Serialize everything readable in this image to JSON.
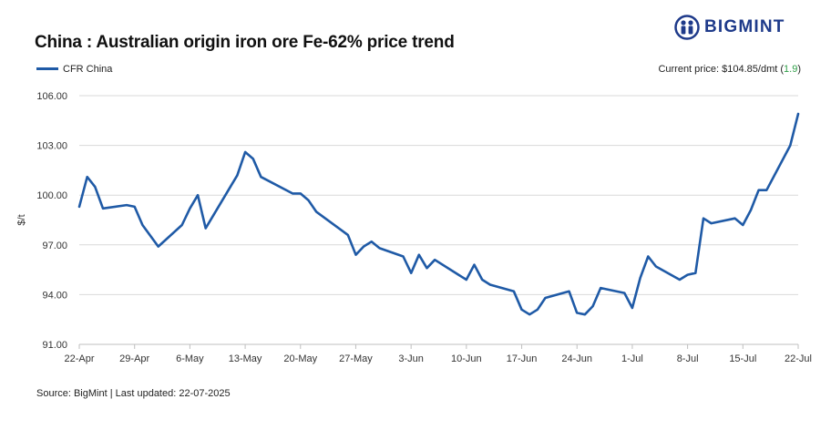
{
  "title": "China : Australian origin iron ore Fe-62% price trend",
  "brand": {
    "name": "BIGMINT",
    "color": "#1e3a8a"
  },
  "legend": {
    "label": "CFR China",
    "color": "#1f5aa6"
  },
  "current_price": {
    "label": "Current price: $104.85/dmt",
    "change_open": " (",
    "change": "1.9",
    "change_close": ")",
    "change_color": "#2e9e47"
  },
  "footer": "Source: BigMint | Last updated: 22-07-2025",
  "chart_data": {
    "type": "line",
    "ylabel": "$/t",
    "ylim": [
      91,
      106
    ],
    "yticks": [
      "91.00",
      "94.00",
      "97.00",
      "100.00",
      "103.00",
      "106.00"
    ],
    "xticks": [
      "22-Apr",
      "29-Apr",
      "6-May",
      "13-May",
      "20-May",
      "27-May",
      "3-Jun",
      "10-Jun",
      "17-Jun",
      "24-Jun",
      "1-Jul",
      "8-Jul",
      "15-Jul",
      "22-Jul"
    ],
    "grid": "horizontal",
    "legend_position": "top-left",
    "series": [
      {
        "name": "CFR China",
        "color": "#1f5aa6",
        "x": [
          "2025-04-22",
          "2025-04-23",
          "2025-04-24",
          "2025-04-25",
          "2025-04-28",
          "2025-04-29",
          "2025-04-30",
          "2025-05-02",
          "2025-05-05",
          "2025-05-06",
          "2025-05-07",
          "2025-05-08",
          "2025-05-12",
          "2025-05-13",
          "2025-05-14",
          "2025-05-15",
          "2025-05-19",
          "2025-05-20",
          "2025-05-21",
          "2025-05-22",
          "2025-05-26",
          "2025-05-27",
          "2025-05-28",
          "2025-05-29",
          "2025-05-30",
          "2025-06-02",
          "2025-06-03",
          "2025-06-04",
          "2025-06-05",
          "2025-06-06",
          "2025-06-09",
          "2025-06-10",
          "2025-06-11",
          "2025-06-12",
          "2025-06-13",
          "2025-06-16",
          "2025-06-17",
          "2025-06-18",
          "2025-06-19",
          "2025-06-20",
          "2025-06-23",
          "2025-06-24",
          "2025-06-25",
          "2025-06-26",
          "2025-06-27",
          "2025-06-30",
          "2025-07-01",
          "2025-07-02",
          "2025-07-03",
          "2025-07-04",
          "2025-07-07",
          "2025-07-08",
          "2025-07-09",
          "2025-07-10",
          "2025-07-11",
          "2025-07-14",
          "2025-07-15",
          "2025-07-16",
          "2025-07-17",
          "2025-07-18",
          "2025-07-21",
          "2025-07-22"
        ],
        "y": [
          99.3,
          101.1,
          100.5,
          99.2,
          99.4,
          99.3,
          98.2,
          96.9,
          98.2,
          99.2,
          100.0,
          98.0,
          101.2,
          102.6,
          102.2,
          101.1,
          100.1,
          100.1,
          99.7,
          99.0,
          97.6,
          96.4,
          96.9,
          97.2,
          96.8,
          96.3,
          95.3,
          96.4,
          95.6,
          96.1,
          95.2,
          94.9,
          95.8,
          94.9,
          94.6,
          94.2,
          93.1,
          92.8,
          93.1,
          93.8,
          94.2,
          92.9,
          92.8,
          93.3,
          94.4,
          94.1,
          93.2,
          95.0,
          96.3,
          95.7,
          94.9,
          95.2,
          95.3,
          98.6,
          98.3,
          98.6,
          98.2,
          99.1,
          100.3,
          100.3,
          103.0,
          104.9
        ]
      }
    ]
  }
}
